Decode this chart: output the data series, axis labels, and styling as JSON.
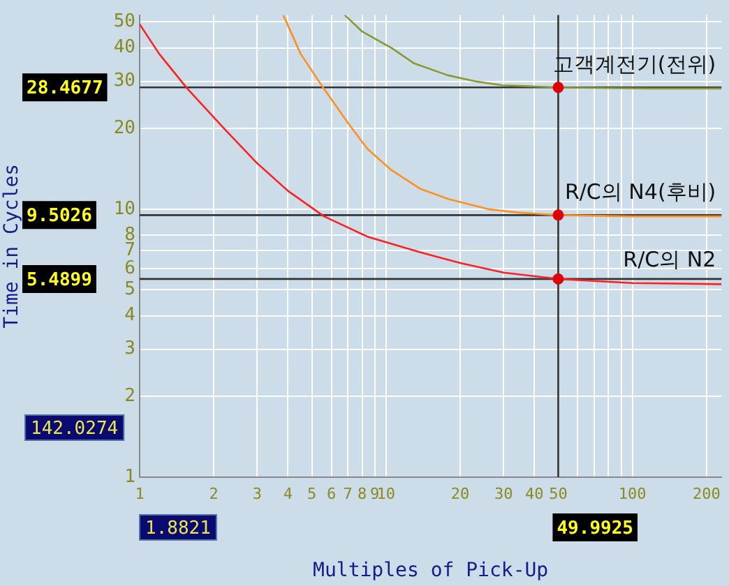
{
  "chart_data": {
    "type": "line",
    "xlabel": "Multiples of Pick-Up",
    "ylabel": "Time in Cycles",
    "log": "xy",
    "grid": true,
    "legend": false,
    "marker": "none",
    "line_style": "solid",
    "xlim": [
      1,
      230
    ],
    "ylim": [
      1,
      53
    ],
    "xticks": [
      1,
      2,
      3,
      4,
      5,
      6,
      7,
      8,
      9,
      10,
      20,
      30,
      40,
      50,
      {
        "value": 60,
        "label": null
      },
      {
        "value": 70,
        "label": null
      },
      {
        "value": 80,
        "label": null
      },
      {
        "value": 90,
        "label": null
      },
      100,
      200
    ],
    "yticks": [
      1,
      2,
      3,
      4,
      5,
      6,
      7,
      8,
      10,
      20,
      30,
      40,
      50
    ],
    "series": [
      {
        "name": "고객계전기(전위)",
        "color": "#8a9a30",
        "x": [
          6.8,
          8,
          10.6,
          13,
          17.8,
          23,
          29.6,
          40,
          50,
          80,
          120,
          230
        ],
        "values": [
          53,
          46,
          39.8,
          35,
          31.6,
          30,
          29,
          28.7,
          28.47,
          28.3,
          28.2,
          28.2
        ]
      },
      {
        "name": "R/C의 N4(후비)",
        "color": "#ff9020",
        "x": [
          3.83,
          4.5,
          5.5,
          7,
          8.4,
          10.5,
          13.8,
          18,
          26,
          35,
          50,
          100,
          230
        ],
        "values": [
          53,
          38,
          28.8,
          21,
          16.8,
          14,
          11.9,
          10.9,
          10,
          9.7,
          9.5,
          9.4,
          9.4
        ]
      },
      {
        "name": "R/C의 N2",
        "color": "#ff2020",
        "x": [
          1,
          1.2,
          1.56,
          2.2,
          2.97,
          4,
          5.6,
          8.4,
          13.8,
          20,
          30,
          50,
          100,
          230
        ],
        "values": [
          49,
          38,
          28.2,
          20,
          14.96,
          11.7,
          9.4,
          7.9,
          6.9,
          6.3,
          5.8,
          5.49,
          5.3,
          5.25
        ]
      },
      {
        "type": "scatter",
        "color": "#e00000",
        "marker": "circle",
        "x": [
          49.9925,
          49.9925,
          49.9925
        ],
        "values": [
          28.4677,
          9.5026,
          5.4899
        ]
      }
    ],
    "ref_lines": [
      {
        "axis": "y",
        "value": 28.4677,
        "label": "28.4677"
      },
      {
        "axis": "y",
        "value": 9.5026,
        "label": "9.5026"
      },
      {
        "axis": "y",
        "value": 5.4899,
        "label": "5.4899"
      },
      {
        "axis": "x",
        "value": 49.9925,
        "label": "49.9925"
      }
    ],
    "annotations": [
      "142.0274",
      "1.8821"
    ]
  }
}
